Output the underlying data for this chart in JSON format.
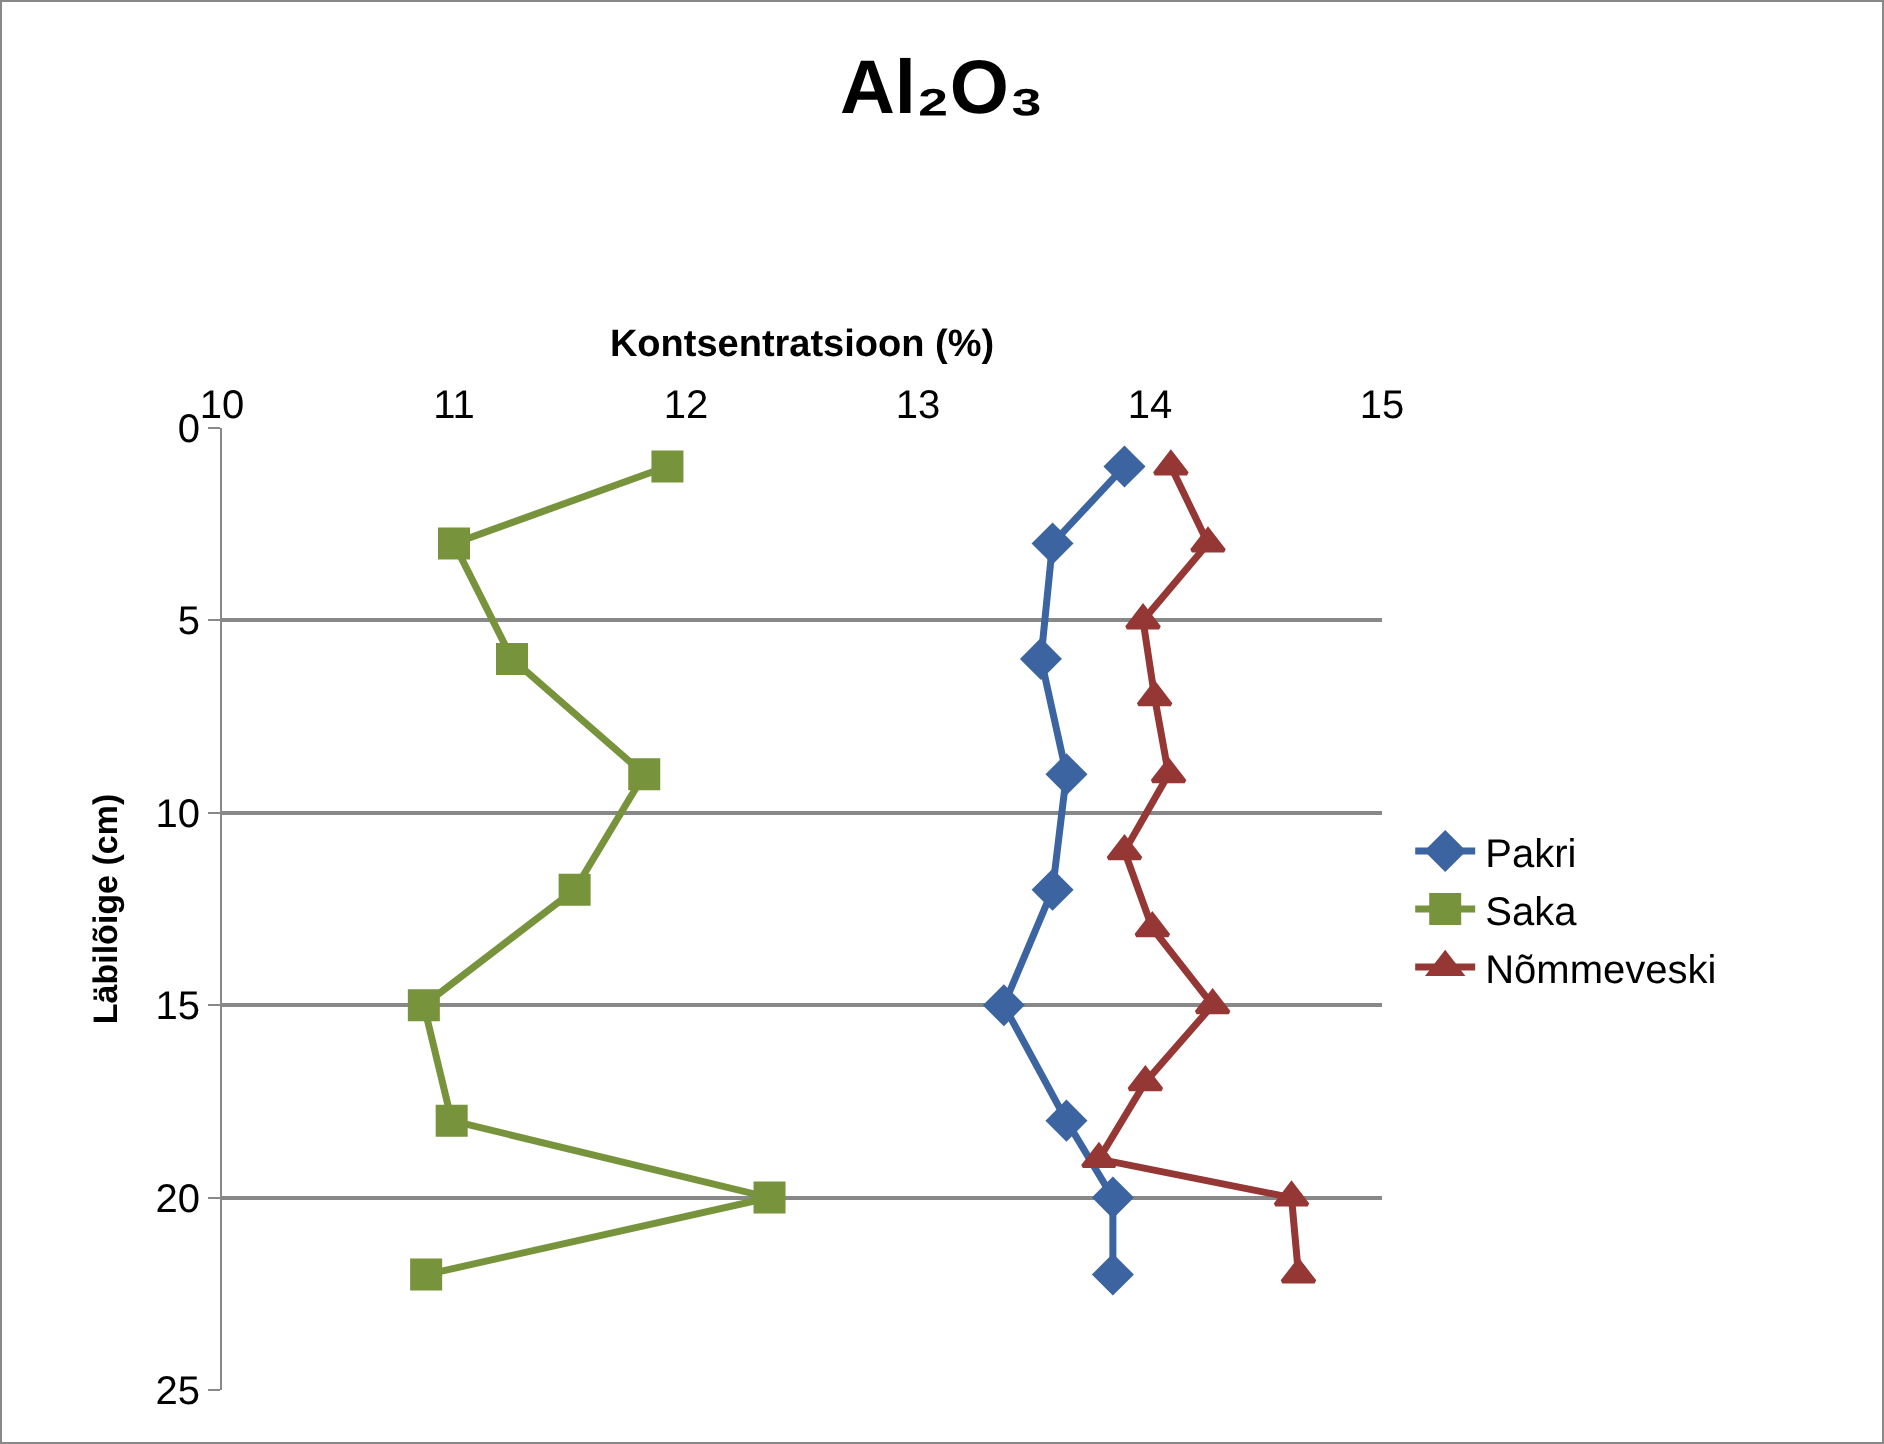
{
  "chart_data": {
    "type": "line",
    "title": "Al₂O₃",
    "xlabel": "Kontsentratsioon (%)",
    "ylabel": "Läbilõige (cm)",
    "xlim": [
      10,
      15
    ],
    "xticks": [
      10,
      11,
      12,
      13,
      14,
      15
    ],
    "ylim": [
      25,
      0
    ],
    "yticks": [
      0,
      5,
      10,
      15,
      20,
      25
    ],
    "grid": "y",
    "legend": "right",
    "series": [
      {
        "name": "Pakri",
        "color": "#3b64a0",
        "marker": "diamond",
        "x": [
          13.89,
          13.58,
          13.53,
          13.64,
          13.58,
          13.37,
          13.64,
          13.84,
          13.84
        ],
        "values": [
          1,
          3,
          6,
          9,
          12,
          15,
          18,
          20,
          22
        ]
      },
      {
        "name": "Saka",
        "color": "#77933c",
        "marker": "square",
        "x": [
          11.92,
          11.0,
          11.25,
          11.82,
          11.52,
          10.87,
          10.99,
          12.36,
          10.88
        ],
        "values": [
          1,
          3,
          6,
          9,
          12,
          15,
          18,
          20,
          22
        ]
      },
      {
        "name": "Nõmmeveski",
        "color": "#953735",
        "marker": "triangle",
        "x": [
          14.09,
          14.25,
          13.97,
          14.02,
          14.08,
          13.89,
          14.01,
          14.27,
          13.98,
          13.78,
          14.61,
          14.64
        ],
        "values": [
          1,
          3,
          5,
          7,
          9,
          11,
          13,
          15,
          17,
          19,
          20,
          22
        ]
      }
    ]
  }
}
